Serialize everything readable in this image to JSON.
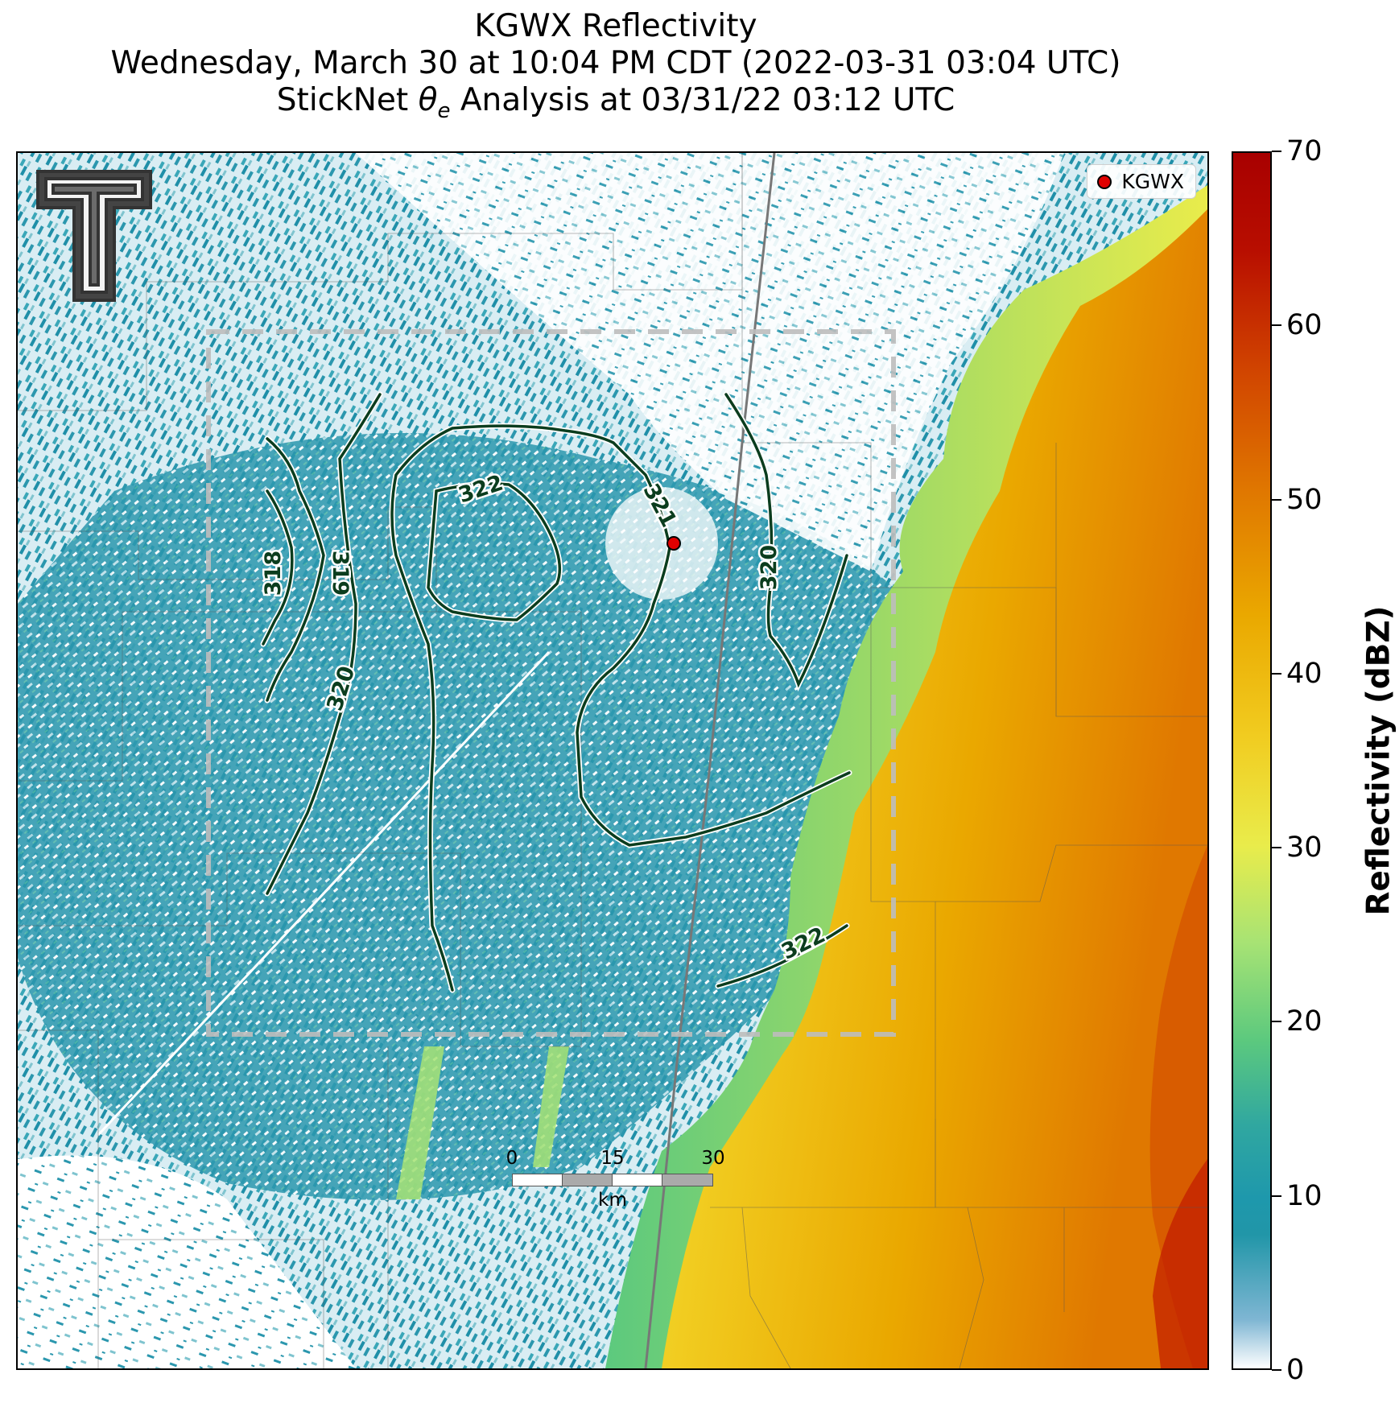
{
  "title": {
    "line1": "KGWX Reflectivity",
    "line2": "Wednesday, March 30 at 10:04 PM CDT (2022-03-31 03:04 UTC)",
    "line3_prefix": "StickNet ",
    "line3_symbol": "θ",
    "line3_subscript": "e",
    "line3_suffix": " Analysis at 03/31/22 03:12 UTC"
  },
  "legend": {
    "radar_label": "KGWX",
    "marker_color": "#e00000"
  },
  "colorbar": {
    "title": "Reflectivity (dBZ)",
    "min": 0,
    "max": 70,
    "ticks": [
      "0",
      "10",
      "20",
      "30",
      "40",
      "50",
      "60",
      "70"
    ]
  },
  "scalebar": {
    "ticks": [
      "0",
      "15",
      "30"
    ],
    "unit": "km"
  },
  "contours": {
    "line_color": "#0b3d1e",
    "labels": [
      {
        "id": "c318",
        "text": "318"
      },
      {
        "id": "c319",
        "text": "319"
      },
      {
        "id": "c320a",
        "text": "320"
      },
      {
        "id": "c320b",
        "text": "320"
      },
      {
        "id": "c321",
        "text": "321"
      },
      {
        "id": "c322a",
        "text": "322"
      },
      {
        "id": "c322b",
        "text": "322"
      }
    ]
  },
  "colors": {
    "clear_air": "#2196a8",
    "light_echo": "#b9dbe8",
    "moderate": "#e9ec4b",
    "strong": "#eaa800",
    "heavy": "#c21a00"
  },
  "icons": {
    "logo": "double-t-logo",
    "radar": "radar-site-marker"
  }
}
